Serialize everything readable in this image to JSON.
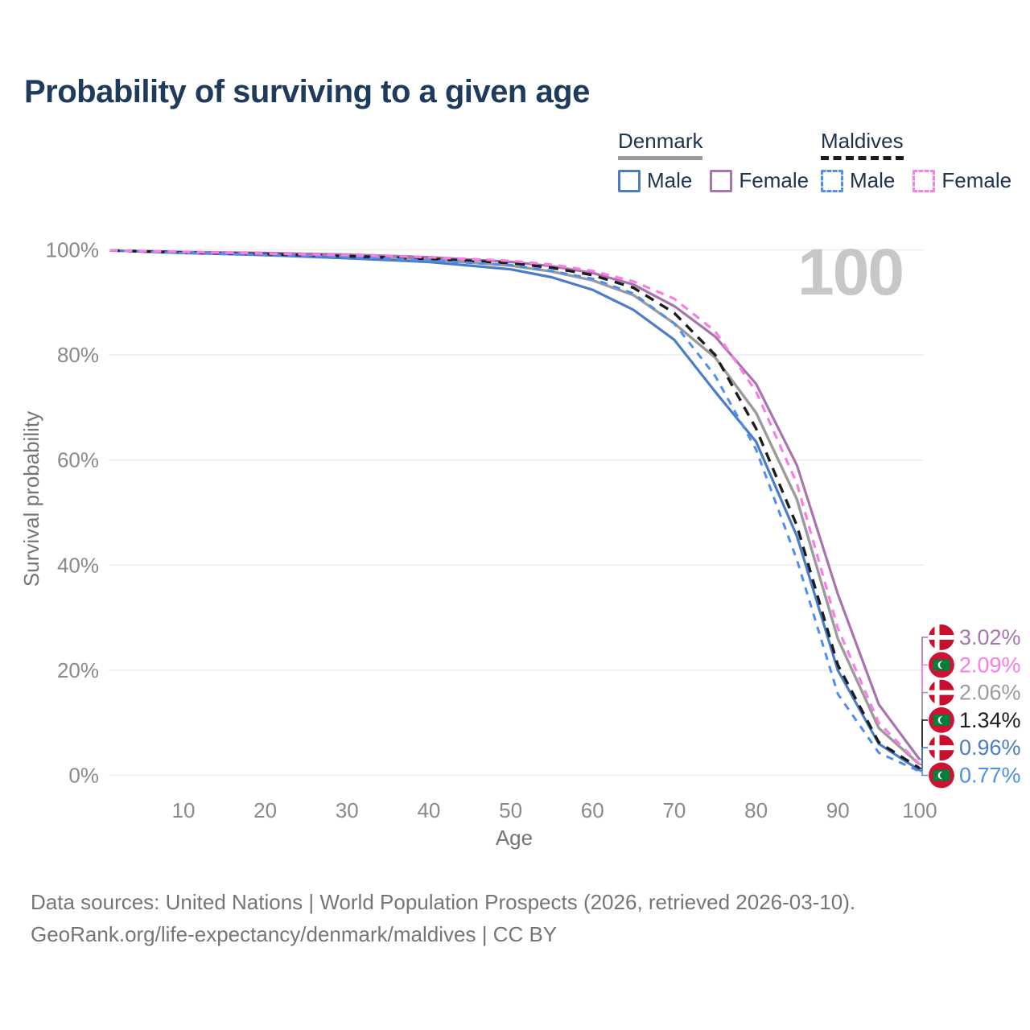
{
  "title": "Probability of surviving to a given age",
  "legend": {
    "groups": [
      {
        "label": "Denmark",
        "line_style": "solid",
        "underline_color": "#9b9b9b",
        "items": [
          {
            "label": "Male",
            "color": "#4a7cc7",
            "dashed": false
          },
          {
            "label": "Female",
            "color": "#a873ae",
            "dashed": false
          }
        ]
      },
      {
        "label": "Maldives",
        "line_style": "dashed",
        "underline_color": "#1c1c1c",
        "items": [
          {
            "label": "Male",
            "color": "#4f8df2",
            "dashed": true
          },
          {
            "label": "Female",
            "color": "#fb7ce4",
            "dashed": true
          }
        ]
      }
    ]
  },
  "watermark": "100",
  "chart_data": {
    "type": "line",
    "title": "Probability of surviving to a given age",
    "xlabel": "Age",
    "ylabel": "Survival probability",
    "xlim": [
      0,
      100
    ],
    "ylim": [
      0,
      100
    ],
    "grid": "horizontal",
    "legend_position": "top-right",
    "x_ticks": [
      10,
      20,
      30,
      40,
      50,
      60,
      70,
      80,
      90,
      100
    ],
    "y_ticks": [
      0,
      20,
      40,
      60,
      80,
      100
    ],
    "y_tick_labels": [
      "0%",
      "20%",
      "40%",
      "60%",
      "80%",
      "100%"
    ],
    "x": [
      1,
      10,
      20,
      30,
      40,
      50,
      55,
      60,
      65,
      70,
      75,
      80,
      85,
      90,
      95,
      100
    ],
    "series": [
      {
        "id": "denmark-total",
        "name": "Denmark",
        "country": "denmark",
        "sex": "total",
        "color": "#9b9b9b",
        "dashed": false,
        "width": 3.4,
        "end_label": "2.06%",
        "values": [
          99.9,
          99.5,
          99.2,
          98.8,
          98.2,
          97.0,
          95.9,
          94.2,
          91.4,
          86.0,
          79.5,
          69.0,
          52.5,
          26.0,
          9.0,
          2.06
        ]
      },
      {
        "id": "denmark-female",
        "name": "Denmark Female",
        "country": "denmark",
        "sex": "female",
        "color": "#a873ae",
        "dashed": false,
        "width": 3.2,
        "end_label": "3.02%",
        "values": [
          99.9,
          99.6,
          99.4,
          99.1,
          98.6,
          97.7,
          96.9,
          95.6,
          93.4,
          89.3,
          83.5,
          74.5,
          59.0,
          34.5,
          13.5,
          3.02
        ]
      },
      {
        "id": "denmark-male",
        "name": "Denmark Male",
        "country": "denmark",
        "sex": "male",
        "color": "#4a7cc7",
        "dashed": false,
        "width": 3.2,
        "end_label": "0.96%",
        "values": [
          99.9,
          99.4,
          99.0,
          98.4,
          97.7,
          96.3,
          94.8,
          92.4,
          88.6,
          82.9,
          73.0,
          63.5,
          45.5,
          20.0,
          6.0,
          0.96
        ]
      },
      {
        "id": "maldives-total",
        "name": "Maldives",
        "country": "maldives",
        "sex": "total",
        "color": "#1c1c1c",
        "dashed": true,
        "dash": "12 9",
        "width": 3.4,
        "end_label": "1.34%",
        "values": [
          99.9,
          99.5,
          99.2,
          98.8,
          98.3,
          97.5,
          96.6,
          95.2,
          92.8,
          88.0,
          80.0,
          66.0,
          47.5,
          21.0,
          6.3,
          1.34
        ]
      },
      {
        "id": "maldives-male",
        "name": "Maldives Male",
        "country": "maldives",
        "sex": "male",
        "color": "#4f8df2",
        "dashed": true,
        "dash": "9 8",
        "width": 3.0,
        "end_label": "0.77%",
        "values": [
          99.9,
          99.4,
          99.1,
          98.6,
          98.0,
          97.1,
          96.0,
          94.5,
          91.7,
          86.0,
          76.0,
          62.0,
          41.0,
          15.5,
          4.3,
          0.77
        ]
      },
      {
        "id": "maldives-female",
        "name": "Maldives Female",
        "country": "maldives",
        "sex": "female",
        "color": "#fb7ce4",
        "dashed": true,
        "dash": "10 8",
        "width": 3.2,
        "end_label": "2.09%",
        "values": [
          99.9,
          99.6,
          99.3,
          99.0,
          98.6,
          97.9,
          97.2,
          96.0,
          94.0,
          90.7,
          84.5,
          73.0,
          55.5,
          28.0,
          10.0,
          2.09
        ]
      }
    ]
  },
  "footer": {
    "line1": "Data sources: United Nations | World Population Prospects (2026, retrieved 2026-03-10).",
    "line2": "GeoRank.org/life-expectancy/denmark/maldives | CC BY"
  }
}
